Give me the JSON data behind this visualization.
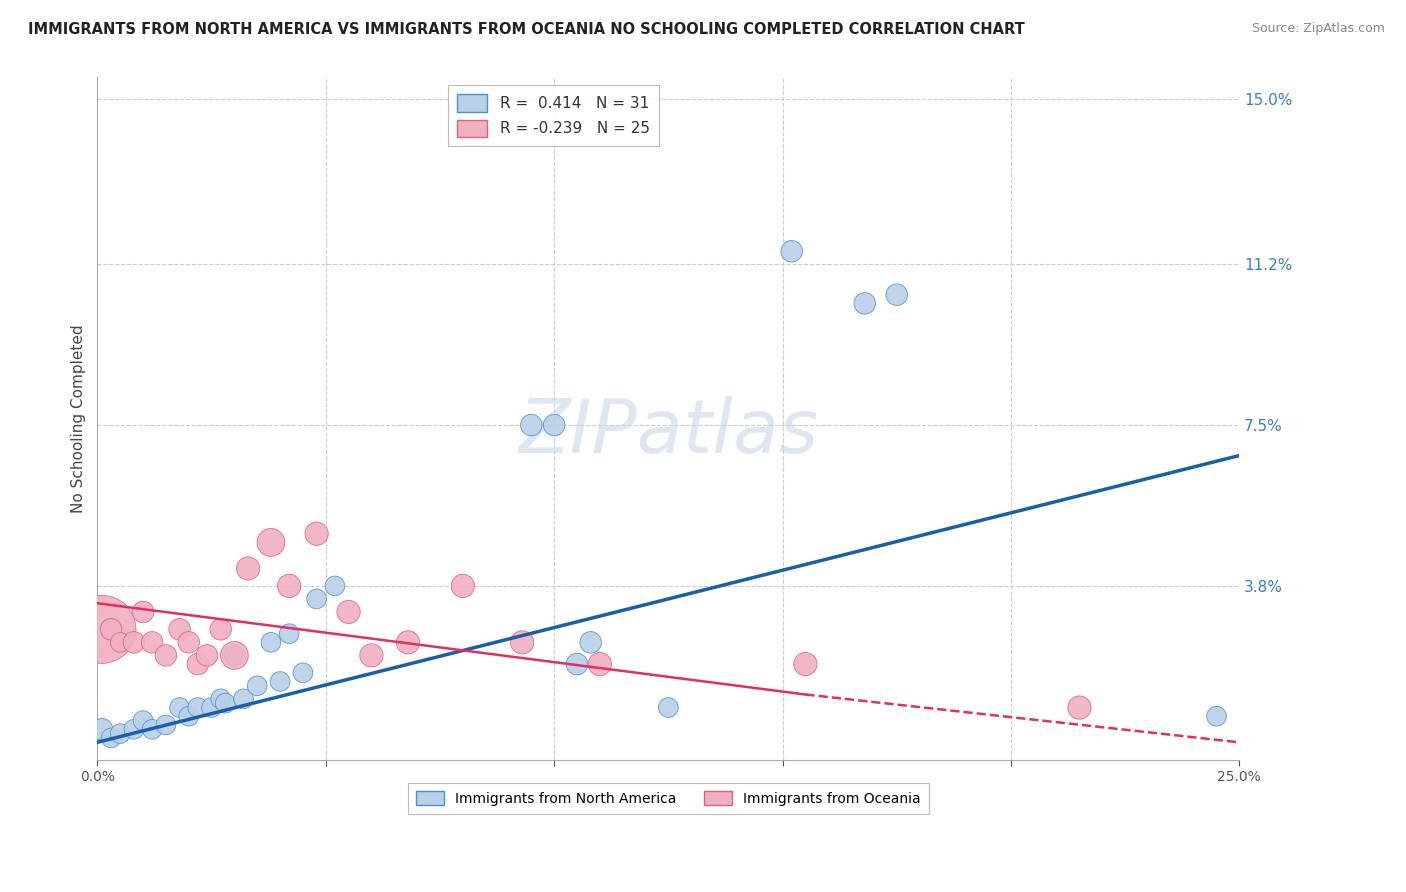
{
  "title": "IMMIGRANTS FROM NORTH AMERICA VS IMMIGRANTS FROM OCEANIA NO SCHOOLING COMPLETED CORRELATION CHART",
  "source": "Source: ZipAtlas.com",
  "ylabel": "No Schooling Completed",
  "xlim": [
    0.0,
    0.25
  ],
  "ylim": [
    -0.002,
    0.155
  ],
  "yticks": [
    0.038,
    0.075,
    0.112,
    0.15
  ],
  "ytick_labels": [
    "3.8%",
    "7.5%",
    "11.2%",
    "15.0%"
  ],
  "xticks": [
    0.0,
    0.05,
    0.1,
    0.15,
    0.2,
    0.25
  ],
  "xtick_labels": [
    "0.0%",
    "",
    "",
    "",
    "",
    "25.0%"
  ],
  "blue_R": 0.414,
  "blue_N": 31,
  "pink_R": -0.239,
  "pink_N": 25,
  "blue_fill": "#b8d0e8",
  "pink_fill": "#f0b0c0",
  "blue_edge": "#4a90d0",
  "pink_edge": "#e06080",
  "blue_line_color": "#1a5fa8",
  "pink_line_color": "#e03060",
  "legend_label_blue": "Immigrants from North America",
  "legend_label_pink": "Immigrants from Oceania",
  "blue_x": [
    0.001,
    0.003,
    0.005,
    0.008,
    0.01,
    0.012,
    0.015,
    0.018,
    0.02,
    0.022,
    0.025,
    0.027,
    0.028,
    0.03,
    0.032,
    0.035,
    0.038,
    0.04,
    0.042,
    0.045,
    0.048,
    0.052,
    0.095,
    0.1,
    0.105,
    0.108,
    0.125,
    0.152,
    0.168,
    0.175,
    0.245
  ],
  "blue_y": [
    0.005,
    0.003,
    0.004,
    0.005,
    0.007,
    0.005,
    0.006,
    0.01,
    0.008,
    0.01,
    0.01,
    0.012,
    0.011,
    0.022,
    0.012,
    0.015,
    0.025,
    0.016,
    0.027,
    0.018,
    0.035,
    0.038,
    0.075,
    0.075,
    0.02,
    0.025,
    0.01,
    0.115,
    0.103,
    0.105,
    0.008
  ],
  "blue_s": [
    30,
    25,
    25,
    25,
    25,
    25,
    25,
    25,
    25,
    25,
    25,
    25,
    25,
    25,
    25,
    25,
    25,
    25,
    25,
    25,
    25,
    25,
    30,
    30,
    30,
    30,
    25,
    30,
    30,
    30,
    25
  ],
  "pink_x": [
    0.001,
    0.003,
    0.005,
    0.008,
    0.01,
    0.012,
    0.015,
    0.018,
    0.02,
    0.022,
    0.024,
    0.027,
    0.03,
    0.033,
    0.038,
    0.042,
    0.048,
    0.055,
    0.06,
    0.068,
    0.08,
    0.093,
    0.11,
    0.155,
    0.215
  ],
  "pink_y": [
    0.028,
    0.028,
    0.025,
    0.025,
    0.032,
    0.025,
    0.022,
    0.028,
    0.025,
    0.02,
    0.022,
    0.028,
    0.022,
    0.042,
    0.048,
    0.038,
    0.05,
    0.032,
    0.022,
    0.025,
    0.038,
    0.025,
    0.02,
    0.02,
    0.01
  ],
  "pink_s": [
    300,
    30,
    25,
    30,
    30,
    30,
    30,
    30,
    30,
    30,
    30,
    30,
    50,
    35,
    50,
    35,
    35,
    35,
    35,
    35,
    35,
    35,
    35,
    35,
    35
  ],
  "blue_trend": [
    0.0,
    0.25,
    0.002,
    0.068
  ],
  "pink_solid": [
    0.0,
    0.155,
    0.034,
    0.013
  ],
  "pink_dashed": [
    0.155,
    0.25,
    0.013,
    0.002
  ],
  "watermark_text": "ZIPatlas",
  "background_color": "#ffffff",
  "grid_color": "#cccccc"
}
